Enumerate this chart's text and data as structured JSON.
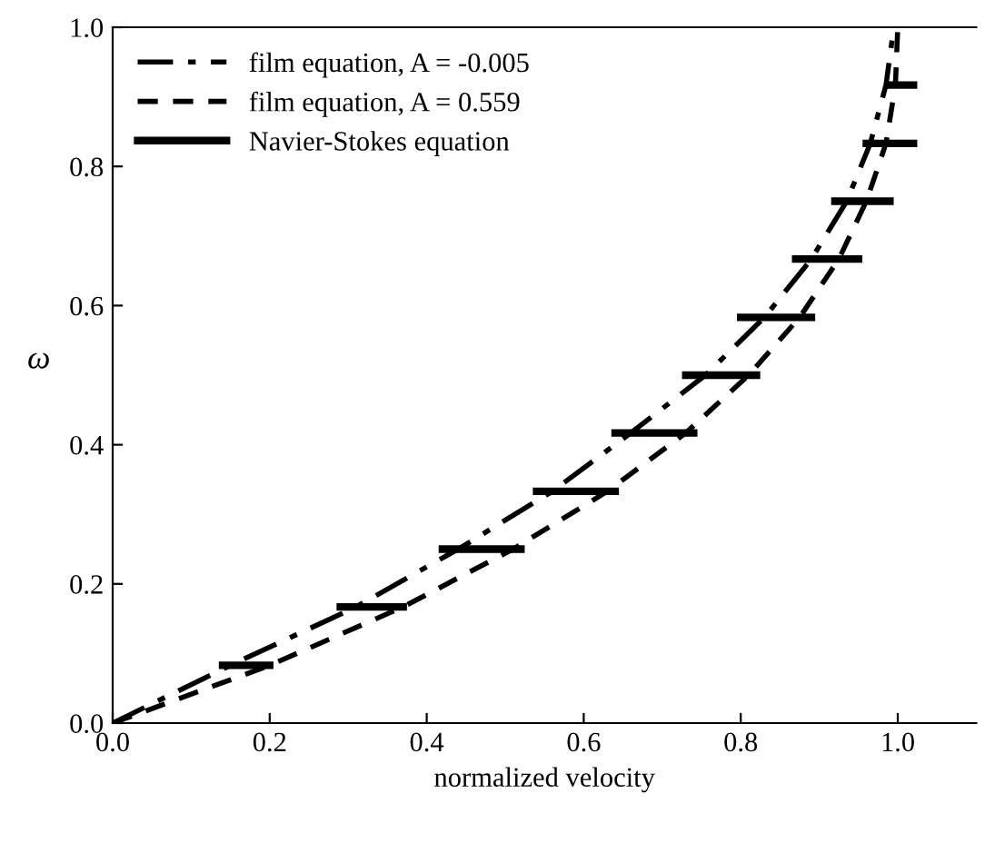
{
  "chart_data": {
    "type": "line",
    "xlabel": "normalized velocity",
    "ylabel": "ω",
    "xlim": [
      0,
      1.1
    ],
    "ylim": [
      0,
      1.0
    ],
    "xticks": [
      {
        "value": 0,
        "label": "0.0"
      },
      0.2,
      0.4,
      0.6,
      0.8,
      {
        "value": 1.0,
        "label": "1.0"
      }
    ],
    "yticks": [
      {
        "value": 0,
        "label": "0.0"
      },
      0.2,
      0.4,
      0.6,
      0.8,
      {
        "value": 1.0,
        "label": "1.0"
      }
    ],
    "grid": false,
    "legend": "top left",
    "series": [
      {
        "name": "film equation, A = -0.005",
        "color": "#000000",
        "line_style": "dashdot",
        "marker": "none",
        "x": [
          0,
          0.15,
          0.31,
          0.44,
          0.56,
          0.66,
          0.755,
          0.83,
          0.89,
          0.935,
          0.965,
          0.985,
          0.995
        ],
        "values": [
          0,
          0.083,
          0.167,
          0.25,
          0.333,
          0.417,
          0.5,
          0.583,
          0.667,
          0.75,
          0.833,
          0.917,
          1.0
        ]
      },
      {
        "name": "film equation, A = 0.559",
        "color": "#000000",
        "line_style": "dashed",
        "marker": "none",
        "x": [
          0,
          0.2,
          0.37,
          0.51,
          0.63,
          0.73,
          0.81,
          0.875,
          0.925,
          0.96,
          0.985,
          0.997,
          1.0
        ],
        "values": [
          0,
          0.083,
          0.167,
          0.25,
          0.333,
          0.417,
          0.5,
          0.583,
          0.667,
          0.75,
          0.833,
          0.917,
          1.0
        ]
      },
      {
        "name": "Navier-Stokes equation",
        "color": "#000000",
        "line_style": "solid",
        "marker": "none",
        "x": [
          0.14,
          0.2,
          null,
          0.29,
          0.37,
          null,
          0.42,
          0.52,
          null,
          0.54,
          0.64,
          null,
          0.64,
          0.74,
          null,
          0.73,
          0.82,
          null,
          0.8,
          0.89,
          null,
          0.87,
          0.95,
          null,
          0.92,
          0.99,
          null,
          0.96,
          1.02,
          null,
          0.99,
          1.02
        ],
        "values": [
          0.083,
          0.083,
          null,
          0.167,
          0.167,
          null,
          0.25,
          0.25,
          null,
          0.333,
          0.333,
          null,
          0.417,
          0.417,
          null,
          0.5,
          0.5,
          null,
          0.583,
          0.583,
          null,
          0.667,
          0.667,
          null,
          0.75,
          0.75,
          null,
          0.833,
          0.833,
          null,
          0.917,
          0.917
        ]
      }
    ]
  }
}
